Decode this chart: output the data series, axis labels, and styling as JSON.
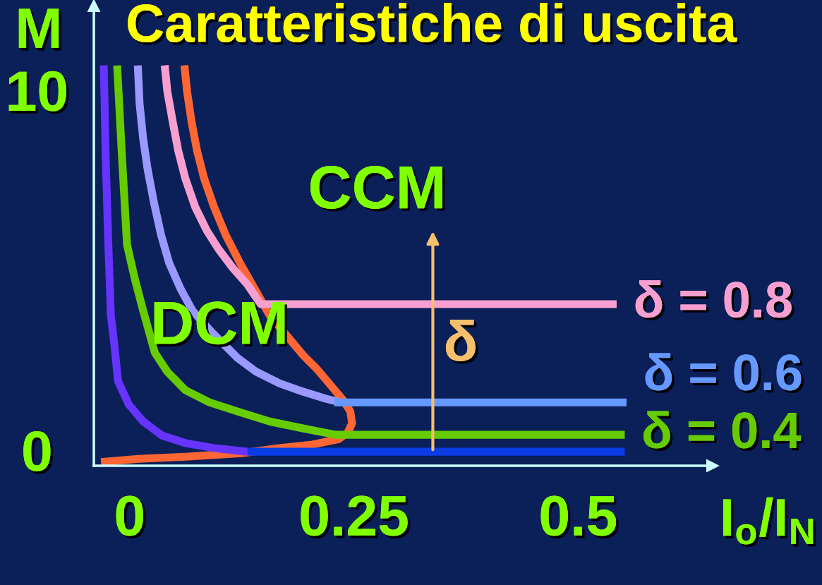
{
  "chart_data": {
    "type": "line",
    "title": "Caratteristiche di uscita",
    "xlabel": "I$_{o}$/I$_{N}$",
    "ylabel": "M",
    "xlim": [
      -0.04,
      0.65
    ],
    "ylim": [
      -0.43,
      12.35
    ],
    "xticks": [
      0,
      0.25,
      0.5
    ],
    "yticks": [
      0,
      10
    ],
    "grid": false,
    "legend": false,
    "marker": "none",
    "line_style": "solid",
    "annotations": [
      {
        "text": "CCM",
        "x": 0.338,
        "y": -0.04
      },
      "DCM",
      "δ"
    ],
    "series": [
      {
        "color": "#ff6633",
        "x": [
          0.061,
          0.064,
          0.069,
          0.075,
          0.083,
          0.094,
          0.107,
          0.123,
          0.141,
          0.156,
          0.178,
          0.193,
          0.209,
          0.225,
          0.238,
          0.246,
          0.248,
          0.243,
          0.233,
          0.204,
          0.167,
          0.125,
          0.062,
          0.01,
          -0.032
        ],
        "values": [
          10.69,
          9.96,
          9.12,
          8.33,
          7.55,
          6.76,
          5.98,
          5.2,
          4.41,
          3.75,
          3.1,
          2.65,
          2.25,
          1.78,
          1.39,
          1.08,
          0.75,
          0.49,
          0.31,
          0.16,
          0.06,
          -0.08,
          -0.18,
          -0.24,
          -0.33
        ]
      },
      {
        "color": "#6633ff",
        "x": [
          -0.029,
          -0.028,
          -0.027,
          -0.024,
          -0.021,
          -0.017,
          -0.013,
          -0.001,
          0.015,
          0.036,
          0.062,
          0.094,
          0.131
        ],
        "values": [
          10.69,
          9.63,
          8.33,
          5.84,
          3.75,
          2.9,
          1.92,
          1.27,
          0.8,
          0.41,
          0.2,
          0.06,
          -0.04
        ]
      },
      {
        "color": "#0a3ce6",
        "x": [
          0.131,
          0.552
        ],
        "values": [
          -0.04,
          -0.04
        ]
      },
      {
        "name": "δ = 0.4",
        "color": "#66cc00",
        "x": [
          -0.014,
          -0.009,
          -0.003,
          0.006,
          0.015,
          0.028,
          0.042,
          0.062,
          0.089,
          0.12,
          0.156,
          0.193,
          0.23,
          0.552
        ],
        "values": [
          10.69,
          8.33,
          5.71,
          4.73,
          3.88,
          2.71,
          2.18,
          1.67,
          1.33,
          1.08,
          0.8,
          0.61,
          0.43,
          0.43
        ]
      },
      {
        "color": "#9999ff",
        "x": [
          0.009,
          0.011,
          0.015,
          0.02,
          0.027,
          0.035,
          0.044,
          0.057,
          0.07,
          0.091,
          0.12,
          0.141,
          0.167,
          0.193,
          0.219,
          0.235
        ],
        "values": [
          10.69,
          9.63,
          8.65,
          7.8,
          6.88,
          5.98,
          5.2,
          4.47,
          3.88,
          3.29,
          2.57,
          2.18,
          1.86,
          1.63,
          1.43,
          1.33
        ]
      },
      {
        "name": "δ = 0.6",
        "color": "#6699ff",
        "x": [
          0.228,
          0.554
        ],
        "values": [
          1.33,
          1.33
        ]
      },
      {
        "name": "δ = 0.8",
        "color": "#f7a0d0",
        "x": [
          0.039,
          0.042,
          0.048,
          0.054,
          0.062,
          0.073,
          0.086,
          0.099,
          0.115,
          0.131,
          0.146,
          0.543
        ],
        "values": [
          10.69,
          9.96,
          9.12,
          8.33,
          7.55,
          6.76,
          6.1,
          5.59,
          5.06,
          4.61,
          4.06,
          4.06
        ]
      }
    ]
  }
}
